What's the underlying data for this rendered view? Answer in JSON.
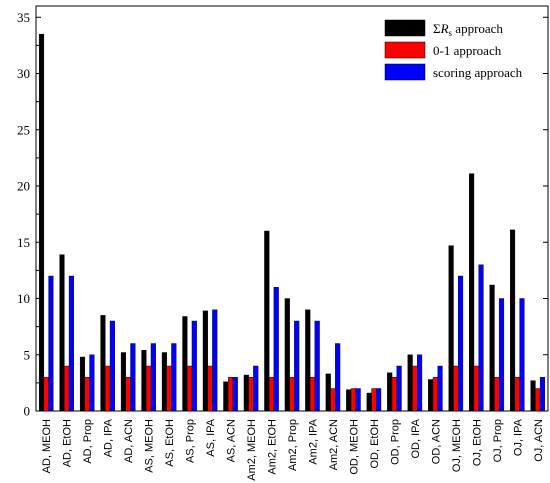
{
  "chart_data": {
    "type": "bar",
    "title": "",
    "xlabel": "",
    "ylabel": "",
    "ylim": [
      0,
      36
    ],
    "y_ticks": [
      0,
      5,
      10,
      15,
      20,
      25,
      30,
      35
    ],
    "grid": false,
    "legend_position": "top-right",
    "categories": [
      "AD, MEOH",
      "AD, EtOH",
      "AD, Prop",
      "AD, IPA",
      "AD, ACN",
      "AS, MEOH",
      "AS, EtOH",
      "AS, Prop",
      "AS, IPA",
      "AS, ACN",
      "Am2, MEOH",
      "Am2, EtOH",
      "Am2, Prop",
      "Am2, IPA",
      "Am2, ACN",
      "OD, MEOH",
      "OD, EtOH",
      "OD, Prop",
      "OD, IPA",
      "OD, ACN",
      "OJ, MEOH",
      "OJ, EtOH",
      "OJ, Prop",
      "OJ, IPA",
      "OJ, ACN"
    ],
    "series": [
      {
        "name": "ΣRs approach",
        "name_parts": {
          "prefix": "Σ",
          "symbol": "R",
          "subscript": "s",
          "suffix": " approach"
        },
        "color": "#000000",
        "values": [
          33.5,
          13.9,
          4.8,
          8.5,
          5.2,
          5.4,
          5.2,
          8.4,
          8.9,
          2.6,
          3.2,
          16.0,
          10.0,
          9.0,
          3.3,
          1.9,
          1.6,
          3.4,
          5.0,
          2.8,
          14.7,
          21.1,
          11.2,
          16.1,
          2.7
        ]
      },
      {
        "name": "0-1 approach",
        "color": "#ff0000",
        "values": [
          3,
          4,
          3,
          4,
          3,
          4,
          4,
          4,
          4,
          3,
          3,
          3,
          3,
          3,
          2,
          2,
          2,
          3,
          4,
          3,
          4,
          4,
          3,
          3,
          2
        ]
      },
      {
        "name": "scoring approach",
        "color": "#0000ff",
        "values": [
          12,
          12,
          5,
          8,
          6,
          6,
          6,
          8,
          9,
          3,
          4,
          11,
          8,
          8,
          6,
          2,
          2,
          4,
          5,
          4,
          12,
          13,
          10,
          10,
          3
        ]
      }
    ]
  }
}
